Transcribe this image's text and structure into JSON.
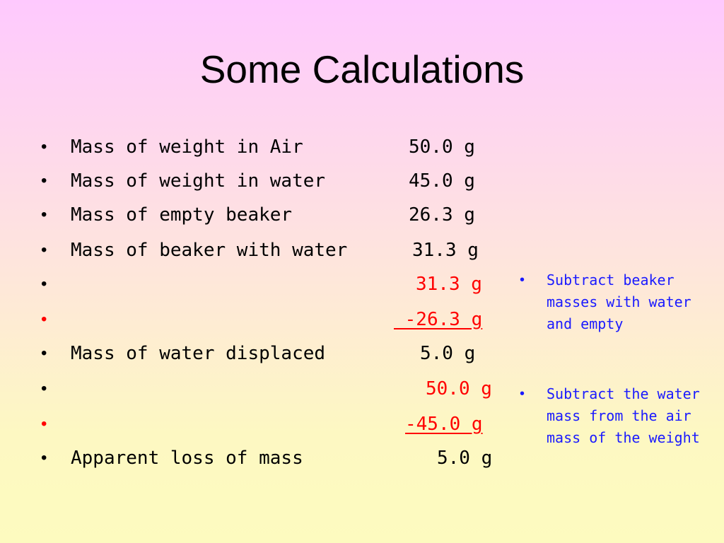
{
  "slide": {
    "title": "Some Calculations",
    "bullet_glyph": "•",
    "rows": [
      {
        "label": "Mass of weight in Air",
        "value": "50.0 g",
        "color": "#000000"
      },
      {
        "label": "Mass of weight in water",
        "value": "45.0 g",
        "color": "#000000"
      },
      {
        "label": "Mass of empty beaker",
        "value": "26.3 g",
        "color": "#000000"
      },
      {
        "label": "Mass of beaker with water",
        "value": "31.3 g",
        "color": "#000000"
      },
      {
        "label": "",
        "value": "31.3 g",
        "color": "#ff0000"
      },
      {
        "label": "",
        "value": " -26.3 g",
        "color": "#ff0000",
        "underline": true
      },
      {
        "label": "Mass of water displaced",
        "value": "5.0 g",
        "color": "#000000"
      },
      {
        "label": "",
        "value": "50.0 g",
        "color": "#ff0000"
      },
      {
        "label": "",
        "value": "-45.0 g",
        "color": "#ff0000",
        "underline": true
      },
      {
        "label": "Apparent loss of mass",
        "value": "5.0 g",
        "color": "#000000"
      }
    ],
    "notes": [
      {
        "text": "Subtract beaker masses with water and empty"
      },
      {
        "text": "Subtract the water mass from the air mass of the weight"
      }
    ],
    "colors": {
      "text": "#000000",
      "highlight": "#ff0000",
      "note": "#1a1aff",
      "background_top": "#fec9fe",
      "background_bottom": "#fdfbbf"
    }
  }
}
